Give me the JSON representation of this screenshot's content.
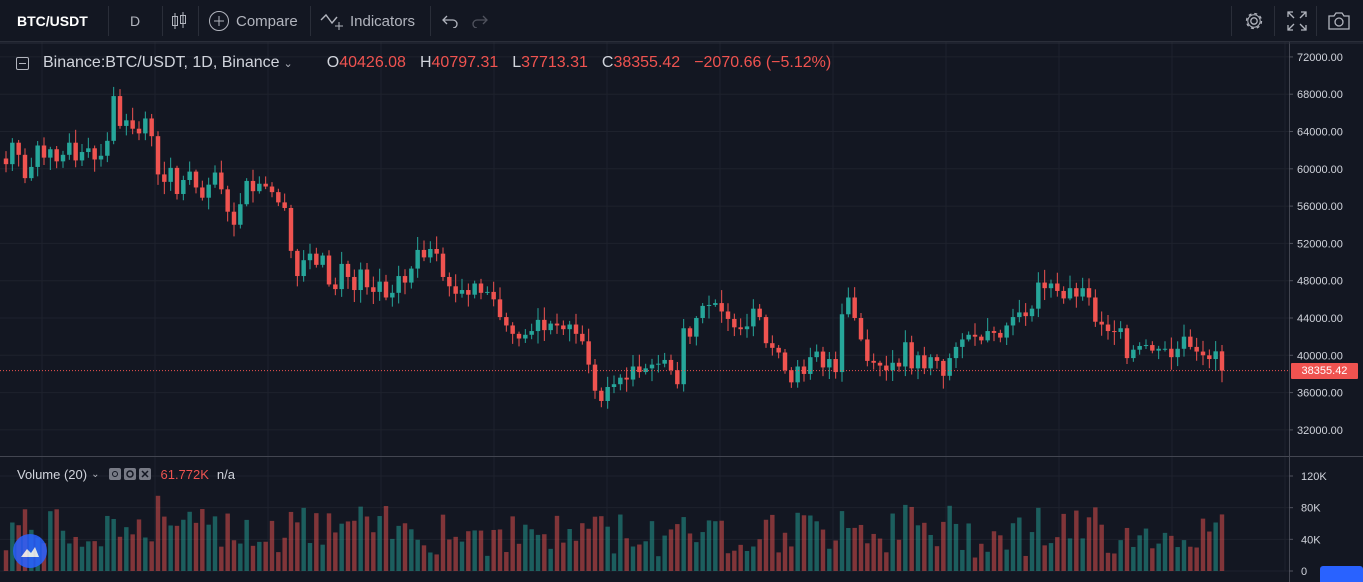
{
  "toolbar": {
    "symbol": "BTC/USDT",
    "interval": "D",
    "compare_label": "Compare",
    "indicators_label": "Indicators"
  },
  "legend": {
    "title": "Binance:BTC/USDT, 1D, Binance",
    "open_key": "O",
    "open": "40426.08",
    "high_key": "H",
    "high": "40797.31",
    "low_key": "L",
    "low": "37713.31",
    "close_key": "C",
    "close": "38355.42",
    "change": "−2070.66 (−5.12%)"
  },
  "volume_legend": {
    "title": "Volume (20)",
    "value": "61.772K",
    "ma": "n/a"
  },
  "last_price": "38355.42",
  "colors": {
    "up": "#26a69a",
    "down": "#ef5350",
    "background": "#131722",
    "grid": "#1e222d",
    "text": "#d1d4dc"
  },
  "chart_data": {
    "type": "candlestick",
    "symbol": "Binance:BTC/USDT",
    "interval": "1D",
    "price_axis": {
      "ticks": [
        "72000.00",
        "68000.00",
        "64000.00",
        "60000.00",
        "56000.00",
        "52000.00",
        "48000.00",
        "44000.00",
        "40000.00",
        "36000.00",
        "32000.00"
      ],
      "range": [
        29200,
        73600
      ]
    },
    "volume_axis": {
      "ticks": [
        "120K",
        "80K",
        "40K",
        "0"
      ],
      "range": [
        0,
        120000
      ]
    },
    "last_price": 38355.42,
    "closes": [
      60500,
      62800,
      61500,
      59000,
      60200,
      62500,
      61200,
      62100,
      60800,
      61500,
      62800,
      60900,
      61800,
      62200,
      61000,
      61400,
      63000,
      67800,
      64600,
      65200,
      64300,
      63800,
      65400,
      63500,
      59400,
      58600,
      60100,
      57300,
      58800,
      59700,
      58000,
      56900,
      58300,
      59600,
      57800,
      55400,
      54000,
      56200,
      58700,
      57600,
      58400,
      58100,
      57500,
      56400,
      55800,
      51200,
      48500,
      50200,
      50900,
      49700,
      50700,
      47600,
      47100,
      49800,
      48400,
      47000,
      49200,
      47300,
      46800,
      47900,
      46200,
      46700,
      48500,
      47800,
      49300,
      51300,
      50500,
      51400,
      50900,
      48400,
      47400,
      46600,
      47000,
      46500,
      47700,
      46700,
      46800,
      46000,
      44100,
      43200,
      42300,
      41800,
      42200,
      42600,
      43800,
      42700,
      43400,
      43200,
      42800,
      43300,
      42300,
      41500,
      39000,
      36200,
      35100,
      36600,
      36900,
      37600,
      37400,
      38800,
      38200,
      38600,
      39000,
      39100,
      39500,
      38400,
      36900,
      42900,
      42000,
      44000,
      45300,
      45400,
      45600,
      44700,
      43900,
      43000,
      42800,
      43100,
      45000,
      44100,
      41300,
      40800,
      40300,
      38400,
      37100,
      38800,
      38000,
      39800,
      40400,
      38700,
      39600,
      38200,
      44400,
      46200,
      44000,
      41700,
      39400,
      39200,
      38900,
      38400,
      39200,
      38800,
      41400,
      38600,
      40000,
      38600,
      39800,
      39400,
      37800,
      39700,
      40900,
      41700,
      42200,
      42000,
      41600,
      42600,
      42400,
      41900,
      43200,
      44100,
      44600,
      44200,
      45000,
      47800,
      47200,
      47700,
      46900,
      46100,
      47200,
      46300,
      47200,
      46200,
      43600,
      43300,
      42600,
      42500,
      42900,
      39700,
      40600,
      41000,
      41100,
      40500,
      40700,
      40700,
      39800,
      40700,
      42000,
      40900,
      40400,
      40000,
      39600,
      40426.08,
      38355.42
    ]
  }
}
